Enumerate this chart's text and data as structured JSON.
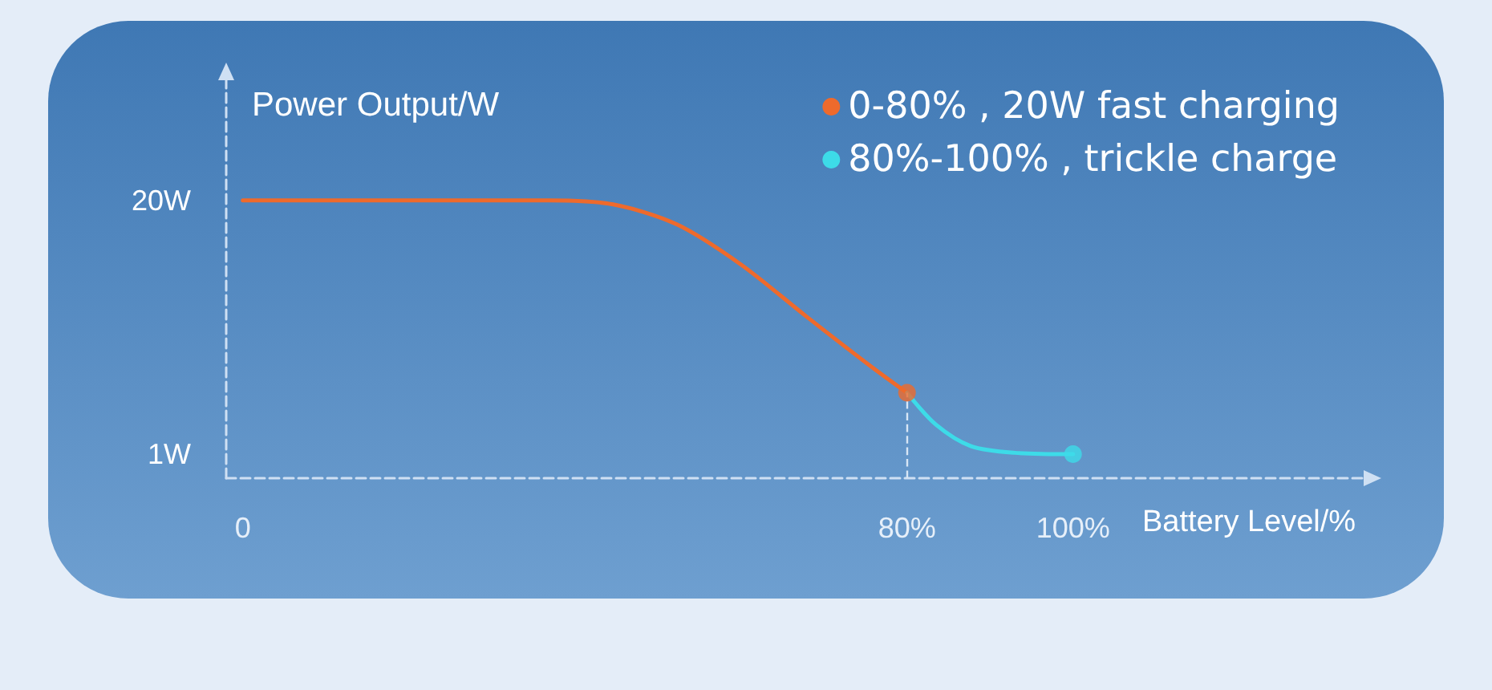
{
  "chart_data": {
    "type": "line",
    "ylabel": "Power Output/W",
    "xlabel": "Battery Level/%",
    "series": [
      {
        "name": "0-80% , 20W fast charging",
        "color": "#ee6a2c",
        "x": [
          0,
          36.8,
          44.6,
          52.3,
          60,
          67.9,
          75.6,
          80
        ],
        "values": [
          20,
          20,
          19.7,
          18.2,
          15.2,
          11.3,
          7.6,
          5.6
        ]
      },
      {
        "name": "80%-100% , trickle charge",
        "color": "#3ddbe8",
        "x": [
          80,
          83.5,
          87.7,
          93,
          100
        ],
        "values": [
          5.6,
          3.2,
          1.6,
          1.1,
          1
        ]
      },
      {
        "type": "scatter",
        "marker": "circle",
        "color": "#ee6a2c",
        "x": [
          80
        ],
        "values": [
          5.6
        ]
      },
      {
        "type": "scatter",
        "marker": "circle",
        "color": "#3ddbe8",
        "x": [
          100
        ],
        "values": [
          1
        ]
      }
    ],
    "xlim": [
      -2,
      135
    ],
    "xticks": [
      0,
      {
        "value": 80,
        "label": "80%"
      },
      {
        "value": 100,
        "label": "100%"
      }
    ],
    "ylim": [
      -0.8,
      29
    ],
    "yticks": [
      {
        "value": 1,
        "label": "1W"
      },
      {
        "value": 20,
        "label": "20W"
      }
    ],
    "ref_lines": [
      {
        "axis": "x",
        "value": 80,
        "line_style": "dashed",
        "color": "#d8e6f5"
      }
    ],
    "line_style": "solid",
    "legend": "top right",
    "grid": false
  }
}
